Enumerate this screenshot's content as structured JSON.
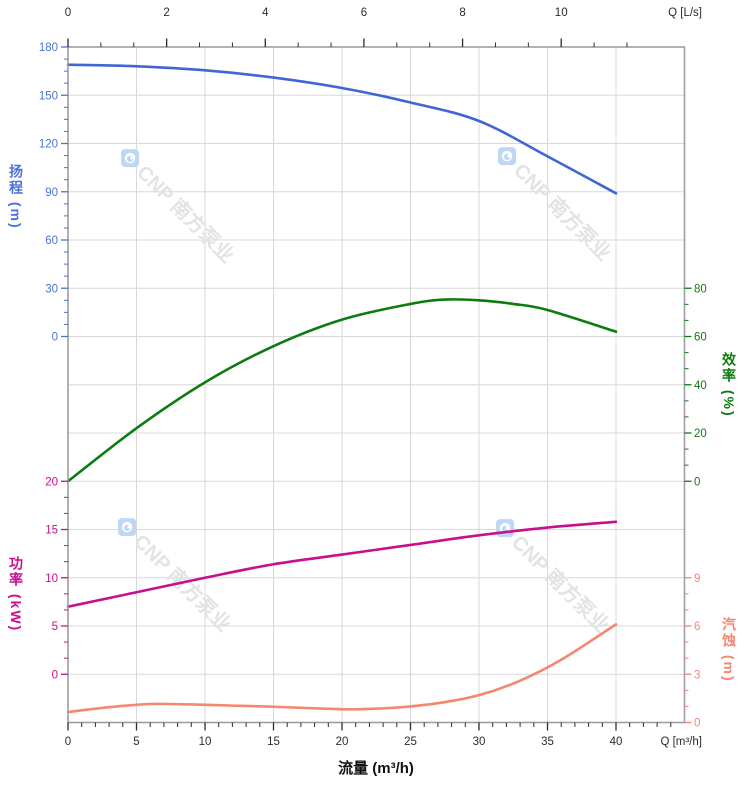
{
  "watermark": {
    "text": "CNP 南方泵业",
    "text_color": "#e3e3e3",
    "logo_color": "#bed8f4"
  },
  "chart_data": {
    "type": "line",
    "title": "",
    "x_bottom": {
      "title": "流量 (m³/h)",
      "unit_label": "Q [m³/h]",
      "range": [
        0,
        45
      ],
      "major_ticks": [
        0,
        5,
        10,
        15,
        20,
        25,
        30,
        35,
        40
      ],
      "minor_step": 1,
      "color": "#2b2b2b"
    },
    "x_top": {
      "unit_label": "Q [L/s]",
      "range": [
        0,
        12.5
      ],
      "major_ticks": [
        0,
        2,
        4,
        6,
        8,
        10
      ],
      "minor_step": 0.6667,
      "color": "#2b2b2b"
    },
    "y_axes": [
      {
        "id": "head",
        "title": "扬程 (m)",
        "side": "left",
        "color": "#4a73da",
        "major_ticks": [
          180,
          150,
          120,
          90,
          60,
          30,
          0
        ],
        "minor_per_major": 4,
        "top_value": 180,
        "top_row": 0,
        "units_per_row": 30
      },
      {
        "id": "efficiency",
        "title": "效率 (%)",
        "side": "right",
        "color": "#0d7c0f",
        "major_ticks": [
          80,
          60,
          40,
          20,
          0
        ],
        "minor_per_major": 3,
        "top_value": 80,
        "top_row": 5,
        "units_per_row": 20
      },
      {
        "id": "power",
        "title": "功率 (kW)",
        "side": "left",
        "color": "#c90f8c",
        "major_ticks": [
          20,
          15,
          10,
          5,
          0
        ],
        "minor_per_major": 3,
        "top_value": 20,
        "top_row": 9,
        "units_per_row": 5
      },
      {
        "id": "npsh",
        "title": "汽蚀 (m)",
        "side": "right",
        "color": "#f5866f",
        "major_ticks": [
          9,
          6,
          3,
          0
        ],
        "minor_per_major": 3,
        "top_value": 9,
        "top_row": 11,
        "units_per_row": 3
      }
    ],
    "series": [
      {
        "name": "head",
        "axis": "head",
        "color": "#3f66d4",
        "points": [
          [
            0,
            169
          ],
          [
            5,
            168
          ],
          [
            10,
            165.5
          ],
          [
            15,
            161
          ],
          [
            20,
            154.5
          ],
          [
            25,
            145.5
          ],
          [
            30,
            134
          ],
          [
            35,
            112
          ],
          [
            40,
            89
          ]
        ]
      },
      {
        "name": "efficiency",
        "axis": "efficiency",
        "color": "#0d7c0f",
        "points": [
          [
            0,
            0
          ],
          [
            5,
            22
          ],
          [
            10,
            41
          ],
          [
            15,
            56
          ],
          [
            20,
            67
          ],
          [
            25,
            73.5
          ],
          [
            27.5,
            75.3
          ],
          [
            30,
            75
          ],
          [
            32.5,
            73.5
          ],
          [
            35,
            71
          ],
          [
            40,
            62
          ]
        ]
      },
      {
        "name": "power",
        "axis": "power",
        "color": "#c90f8c",
        "points": [
          [
            0,
            7
          ],
          [
            5,
            8.5
          ],
          [
            10,
            10
          ],
          [
            15,
            11.4
          ],
          [
            20,
            12.4
          ],
          [
            25,
            13.4
          ],
          [
            30,
            14.4
          ],
          [
            35,
            15.2
          ],
          [
            40,
            15.8
          ]
        ]
      },
      {
        "name": "npsh",
        "axis": "npsh",
        "color": "#f5866f",
        "points": [
          [
            0,
            0.65
          ],
          [
            3,
            0.95
          ],
          [
            6,
            1.15
          ],
          [
            9,
            1.12
          ],
          [
            12,
            1.05
          ],
          [
            15,
            0.98
          ],
          [
            18,
            0.88
          ],
          [
            21,
            0.82
          ],
          [
            24,
            0.93
          ],
          [
            27,
            1.2
          ],
          [
            30,
            1.7
          ],
          [
            33,
            2.6
          ],
          [
            36,
            3.9
          ],
          [
            40,
            6.1
          ]
        ]
      }
    ],
    "grid": {
      "rows": 14,
      "line_color": "#d8d8d8",
      "border_color": "#9e9e9e",
      "tick_color": "#3a3a3a"
    }
  }
}
